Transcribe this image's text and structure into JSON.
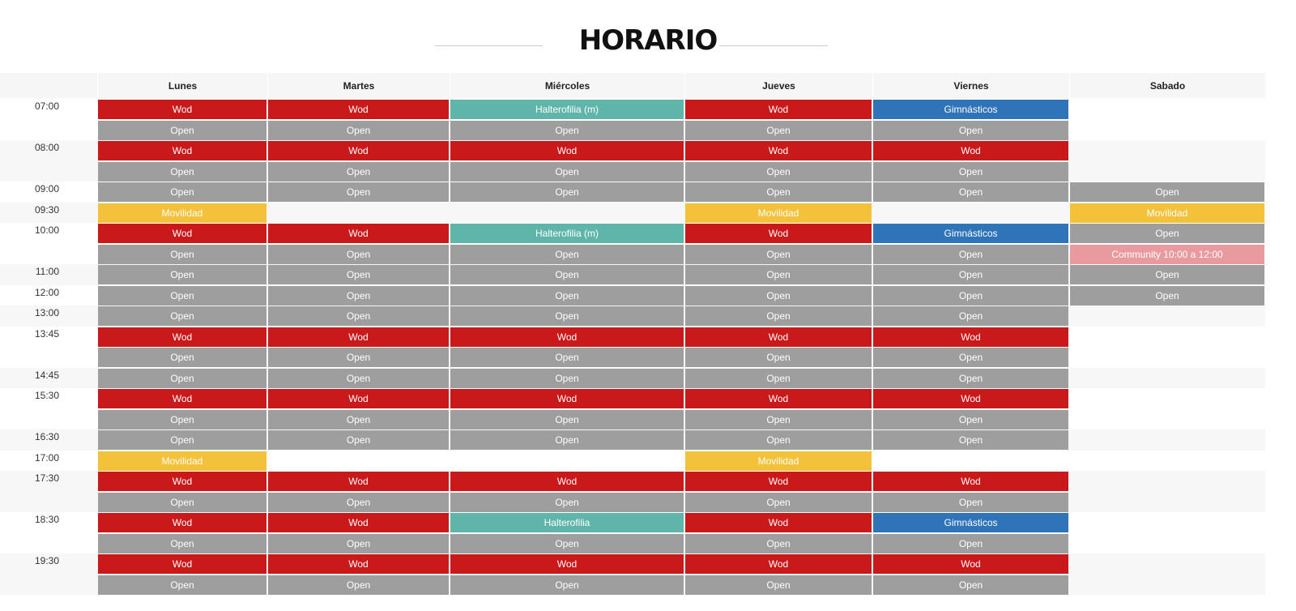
{
  "header": {
    "title": "HORARIO"
  },
  "schedule": {
    "days": [
      "Lunes",
      "Martes",
      "Miércoles",
      "Jueves",
      "Viernes",
      "Sabado"
    ],
    "slots": [
      {
        "time": "07:00",
        "days": [
          [
            {
              "label": "Wod",
              "color": "#c9191b"
            },
            {
              "label": "Open",
              "color": "#9e9e9e"
            }
          ],
          [
            {
              "label": "Wod",
              "color": "#c9191b"
            },
            {
              "label": "Open",
              "color": "#9e9e9e"
            }
          ],
          [
            {
              "label": "Halterofilia (m)",
              "color": "#5fb5a9"
            },
            {
              "label": "Open",
              "color": "#9e9e9e"
            }
          ],
          [
            {
              "label": "Wod",
              "color": "#c9191b"
            },
            {
              "label": "Open",
              "color": "#9e9e9e"
            }
          ],
          [
            {
              "label": "Gimnásticos",
              "color": "#2f73b9"
            },
            {
              "label": "Open",
              "color": "#9e9e9e"
            }
          ],
          []
        ]
      },
      {
        "time": "08:00",
        "days": [
          [
            {
              "label": "Wod",
              "color": "#c9191b"
            },
            {
              "label": "Open",
              "color": "#9e9e9e"
            }
          ],
          [
            {
              "label": "Wod",
              "color": "#c9191b"
            },
            {
              "label": "Open",
              "color": "#9e9e9e"
            }
          ],
          [
            {
              "label": "Wod",
              "color": "#c9191b"
            },
            {
              "label": "Open",
              "color": "#9e9e9e"
            }
          ],
          [
            {
              "label": "Wod",
              "color": "#c9191b"
            },
            {
              "label": "Open",
              "color": "#9e9e9e"
            }
          ],
          [
            {
              "label": "Wod",
              "color": "#c9191b"
            },
            {
              "label": "Open",
              "color": "#9e9e9e"
            }
          ],
          []
        ]
      },
      {
        "time": "09:00",
        "days": [
          [
            {
              "label": "Open",
              "color": "#9e9e9e"
            }
          ],
          [
            {
              "label": "Open",
              "color": "#9e9e9e"
            }
          ],
          [
            {
              "label": "Open",
              "color": "#9e9e9e"
            }
          ],
          [
            {
              "label": "Open",
              "color": "#9e9e9e"
            }
          ],
          [
            {
              "label": "Open",
              "color": "#9e9e9e"
            }
          ],
          [
            {
              "label": "Open",
              "color": "#9e9e9e"
            }
          ]
        ]
      },
      {
        "time": "09:30",
        "days": [
          [
            {
              "label": "Movilidad",
              "color": "#f3c13a"
            }
          ],
          [],
          [],
          [
            {
              "label": "Movilidad",
              "color": "#f3c13a"
            }
          ],
          [],
          [
            {
              "label": "Movilidad",
              "color": "#f3c13a"
            }
          ]
        ]
      },
      {
        "time": "10:00",
        "days": [
          [
            {
              "label": "Wod",
              "color": "#c9191b"
            },
            {
              "label": "Open",
              "color": "#9e9e9e"
            }
          ],
          [
            {
              "label": "Wod",
              "color": "#c9191b"
            },
            {
              "label": "Open",
              "color": "#9e9e9e"
            }
          ],
          [
            {
              "label": "Halterofilia (m)",
              "color": "#5fb5a9"
            },
            {
              "label": "Open",
              "color": "#9e9e9e"
            }
          ],
          [
            {
              "label": "Wod",
              "color": "#c9191b"
            },
            {
              "label": "Open",
              "color": "#9e9e9e"
            }
          ],
          [
            {
              "label": "Gimnásticos",
              "color": "#2f73b9"
            },
            {
              "label": "Open",
              "color": "#9e9e9e"
            }
          ],
          [
            {
              "label": "Open",
              "color": "#9e9e9e"
            },
            {
              "label": "Community 10:00 a 12:00",
              "color": "#e99a9e"
            }
          ]
        ]
      },
      {
        "time": "11:00",
        "days": [
          [
            {
              "label": "Open",
              "color": "#9e9e9e"
            }
          ],
          [
            {
              "label": "Open",
              "color": "#9e9e9e"
            }
          ],
          [
            {
              "label": "Open",
              "color": "#9e9e9e"
            }
          ],
          [
            {
              "label": "Open",
              "color": "#9e9e9e"
            }
          ],
          [
            {
              "label": "Open",
              "color": "#9e9e9e"
            }
          ],
          [
            {
              "label": "Open",
              "color": "#9e9e9e"
            }
          ]
        ]
      },
      {
        "time": "12:00",
        "days": [
          [
            {
              "label": "Open",
              "color": "#9e9e9e"
            }
          ],
          [
            {
              "label": "Open",
              "color": "#9e9e9e"
            }
          ],
          [
            {
              "label": "Open",
              "color": "#9e9e9e"
            }
          ],
          [
            {
              "label": "Open",
              "color": "#9e9e9e"
            }
          ],
          [
            {
              "label": "Open",
              "color": "#9e9e9e"
            }
          ],
          [
            {
              "label": "Open",
              "color": "#9e9e9e"
            }
          ]
        ]
      },
      {
        "time": "13:00",
        "days": [
          [
            {
              "label": "Open",
              "color": "#9e9e9e"
            }
          ],
          [
            {
              "label": "Open",
              "color": "#9e9e9e"
            }
          ],
          [
            {
              "label": "Open",
              "color": "#9e9e9e"
            }
          ],
          [
            {
              "label": "Open",
              "color": "#9e9e9e"
            }
          ],
          [
            {
              "label": "Open",
              "color": "#9e9e9e"
            }
          ],
          []
        ]
      },
      {
        "time": "13:45",
        "days": [
          [
            {
              "label": "Wod",
              "color": "#c9191b"
            },
            {
              "label": "Open",
              "color": "#9e9e9e"
            }
          ],
          [
            {
              "label": "Wod",
              "color": "#c9191b"
            },
            {
              "label": "Open",
              "color": "#9e9e9e"
            }
          ],
          [
            {
              "label": "Wod",
              "color": "#c9191b"
            },
            {
              "label": "Open",
              "color": "#9e9e9e"
            }
          ],
          [
            {
              "label": "Wod",
              "color": "#c9191b"
            },
            {
              "label": "Open",
              "color": "#9e9e9e"
            }
          ],
          [
            {
              "label": "Wod",
              "color": "#c9191b"
            },
            {
              "label": "Open",
              "color": "#9e9e9e"
            }
          ],
          []
        ]
      },
      {
        "time": "14:45",
        "days": [
          [
            {
              "label": "Open",
              "color": "#9e9e9e"
            }
          ],
          [
            {
              "label": "Open",
              "color": "#9e9e9e"
            }
          ],
          [
            {
              "label": "Open",
              "color": "#9e9e9e"
            }
          ],
          [
            {
              "label": "Open",
              "color": "#9e9e9e"
            }
          ],
          [
            {
              "label": "Open",
              "color": "#9e9e9e"
            }
          ],
          []
        ]
      },
      {
        "time": "15:30",
        "days": [
          [
            {
              "label": "Wod",
              "color": "#c9191b"
            },
            {
              "label": "Open",
              "color": "#9e9e9e"
            }
          ],
          [
            {
              "label": "Wod",
              "color": "#c9191b"
            },
            {
              "label": "Open",
              "color": "#9e9e9e"
            }
          ],
          [
            {
              "label": "Wod",
              "color": "#c9191b"
            },
            {
              "label": "Open",
              "color": "#9e9e9e"
            }
          ],
          [
            {
              "label": "Wod",
              "color": "#c9191b"
            },
            {
              "label": "Open",
              "color": "#9e9e9e"
            }
          ],
          [
            {
              "label": "Wod",
              "color": "#c9191b"
            },
            {
              "label": "Open",
              "color": "#9e9e9e"
            }
          ],
          []
        ]
      },
      {
        "time": "16:30",
        "days": [
          [
            {
              "label": "Open",
              "color": "#9e9e9e"
            }
          ],
          [
            {
              "label": "Open",
              "color": "#9e9e9e"
            }
          ],
          [
            {
              "label": "Open",
              "color": "#9e9e9e"
            }
          ],
          [
            {
              "label": "Open",
              "color": "#9e9e9e"
            }
          ],
          [
            {
              "label": "Open",
              "color": "#9e9e9e"
            }
          ],
          []
        ]
      },
      {
        "time": "17:00",
        "days": [
          [
            {
              "label": "Movilidad",
              "color": "#f3c13a"
            }
          ],
          [],
          [],
          [
            {
              "label": "Movilidad",
              "color": "#f3c13a"
            }
          ],
          [],
          []
        ]
      },
      {
        "time": "17:30",
        "days": [
          [
            {
              "label": "Wod",
              "color": "#c9191b"
            },
            {
              "label": "Open",
              "color": "#9e9e9e"
            }
          ],
          [
            {
              "label": "Wod",
              "color": "#c9191b"
            },
            {
              "label": "Open",
              "color": "#9e9e9e"
            }
          ],
          [
            {
              "label": "Wod",
              "color": "#c9191b"
            },
            {
              "label": "Open",
              "color": "#9e9e9e"
            }
          ],
          [
            {
              "label": "Wod",
              "color": "#c9191b"
            },
            {
              "label": "Open",
              "color": "#9e9e9e"
            }
          ],
          [
            {
              "label": "Wod",
              "color": "#c9191b"
            },
            {
              "label": "Open",
              "color": "#9e9e9e"
            }
          ],
          []
        ]
      },
      {
        "time": "18:30",
        "days": [
          [
            {
              "label": "Wod",
              "color": "#c9191b"
            },
            {
              "label": "Open",
              "color": "#9e9e9e"
            }
          ],
          [
            {
              "label": "Wod",
              "color": "#c9191b"
            },
            {
              "label": "Open",
              "color": "#9e9e9e"
            }
          ],
          [
            {
              "label": "Halterofilia",
              "color": "#5fb5a9"
            },
            {
              "label": "Open",
              "color": "#9e9e9e"
            }
          ],
          [
            {
              "label": "Wod",
              "color": "#c9191b"
            },
            {
              "label": "Open",
              "color": "#9e9e9e"
            }
          ],
          [
            {
              "label": "Gimnásticos",
              "color": "#2f73b9"
            },
            {
              "label": "Open",
              "color": "#9e9e9e"
            }
          ],
          []
        ]
      },
      {
        "time": "19:30",
        "days": [
          [
            {
              "label": "Wod",
              "color": "#c9191b"
            },
            {
              "label": "Open",
              "color": "#9e9e9e"
            }
          ],
          [
            {
              "label": "Wod",
              "color": "#c9191b"
            },
            {
              "label": "Open",
              "color": "#9e9e9e"
            }
          ],
          [
            {
              "label": "Wod",
              "color": "#c9191b"
            },
            {
              "label": "Open",
              "color": "#9e9e9e"
            }
          ],
          [
            {
              "label": "Wod",
              "color": "#c9191b"
            },
            {
              "label": "Open",
              "color": "#9e9e9e"
            }
          ],
          [
            {
              "label": "Wod",
              "color": "#c9191b"
            },
            {
              "label": "Open",
              "color": "#9e9e9e"
            }
          ],
          []
        ]
      }
    ]
  }
}
